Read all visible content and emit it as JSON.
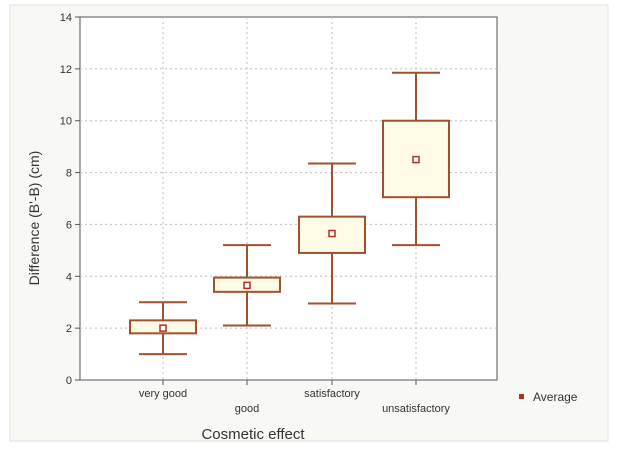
{
  "chart_data": {
    "type": "box",
    "xlabel": "Cosmetic effect",
    "ylabel": "Difference  (B'-B) (cm)",
    "ylim": [
      0,
      14
    ],
    "yticks": [
      0,
      2,
      4,
      6,
      8,
      10,
      12,
      14
    ],
    "grid": true,
    "legend": {
      "position": "right",
      "label": "Average"
    },
    "categories": [
      "very good",
      "good",
      "satisfactory",
      "unsatisfactory"
    ],
    "boxes": [
      {
        "category": "very good",
        "whisker_low": 1.0,
        "q1": 1.8,
        "q3": 2.3,
        "whisker_high": 3.0,
        "average": 2.0
      },
      {
        "category": "good",
        "whisker_low": 2.1,
        "q1": 3.4,
        "q3": 3.95,
        "whisker_high": 5.2,
        "average": 3.65
      },
      {
        "category": "satisfactory",
        "whisker_low": 2.95,
        "q1": 4.9,
        "q3": 6.3,
        "whisker_high": 8.35,
        "average": 5.65
      },
      {
        "category": "unsatisfactory",
        "whisker_low": 5.2,
        "q1": 7.05,
        "q3": 10.0,
        "whisker_high": 11.85,
        "average": 8.5
      }
    ],
    "colors": {
      "box_stroke": "#a0522d",
      "box_fill": "#fffbe6",
      "marker": "#b03020",
      "grid": "#bdbdbd"
    }
  }
}
